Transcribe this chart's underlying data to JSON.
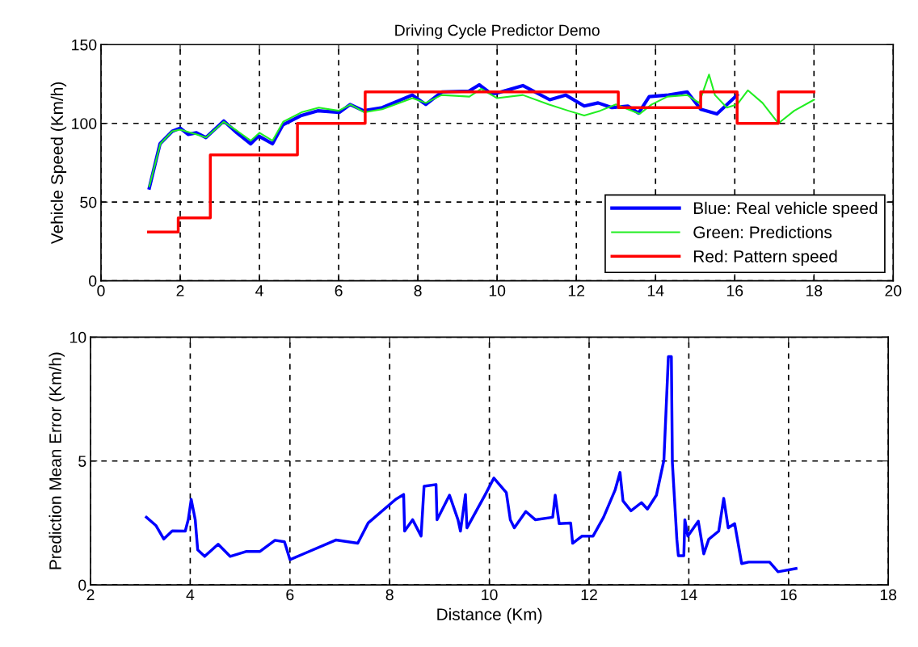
{
  "chart_data": [
    {
      "type": "line",
      "title": "Driving Cycle Predictor Demo",
      "ylabel": "Vehicle Speed (Km/h)",
      "xlim": [
        0,
        20
      ],
      "xticks": [
        0,
        2,
        4,
        6,
        8,
        10,
        12,
        14,
        16,
        18,
        20
      ],
      "ylim": [
        0,
        150
      ],
      "yticks": [
        0,
        50,
        100,
        150
      ],
      "grid": true,
      "legend": "bottom right",
      "marker": "none",
      "line_style": "solid",
      "series": [
        {
          "name": "Blue: Real vehicle speed",
          "color": "#0000ff",
          "x": [
            1.22,
            1.49,
            1.8,
            2.0,
            2.2,
            2.41,
            2.65,
            3.1,
            3.43,
            3.78,
            3.98,
            4.33,
            4.59,
            5.06,
            5.47,
            6.02,
            6.29,
            6.63,
            7.1,
            7.86,
            8.2,
            8.61,
            9.29,
            9.55,
            9.84,
            9.96,
            10.65,
            11.33,
            11.73,
            12.2,
            12.55,
            12.9,
            13.3,
            13.57,
            13.84,
            14.33,
            14.8,
            15.14,
            15.55,
            16.06
          ],
          "values": [
            59,
            87,
            95,
            97,
            93,
            94,
            91,
            101.5,
            94,
            87,
            92,
            87,
            99,
            105,
            108,
            107,
            112,
            108,
            110,
            118,
            112,
            120,
            120.5,
            124.5,
            119,
            119,
            124,
            115,
            118,
            111,
            113,
            110,
            111,
            106.5,
            117,
            118,
            120,
            109,
            106,
            118
          ]
        },
        {
          "name": "Green: Predictions",
          "color": "#22ee22",
          "x": [
            1.22,
            1.5,
            1.8,
            2.0,
            2.4,
            2.65,
            3.1,
            3.45,
            3.78,
            4.0,
            4.33,
            4.6,
            5.06,
            5.5,
            6.0,
            6.3,
            6.65,
            7.1,
            7.86,
            8.2,
            8.6,
            9.3,
            9.6,
            10.0,
            10.65,
            11.3,
            11.8,
            12.2,
            12.6,
            13.0,
            13.6,
            13.9,
            14.3,
            14.8,
            15.1,
            15.35,
            15.5,
            15.8,
            16.06,
            16.33,
            16.7,
            17.1,
            17.5,
            18.0
          ],
          "values": [
            60,
            87,
            95,
            96,
            93,
            91,
            101,
            95,
            89,
            94,
            89,
            101,
            107,
            110,
            108,
            112,
            107,
            109,
            116,
            113,
            118,
            117,
            122,
            116,
            118,
            112,
            108,
            105,
            108,
            112,
            106,
            112,
            117,
            118,
            113,
            131,
            118,
            110,
            112,
            121,
            113,
            100,
            108,
            115
          ]
        },
        {
          "name": "Red: Pattern speed",
          "type": "step",
          "color": "#ff0000",
          "x": [
            1.2,
            1.95,
            2.76,
            4.96,
            6.67,
            13.06,
            15.14,
            16.06,
            17.1,
            18.0
          ],
          "values": [
            31,
            40,
            80,
            100,
            120,
            110,
            120,
            100,
            120,
            120
          ]
        }
      ]
    },
    {
      "type": "line",
      "xlabel": "Distance (Km)",
      "ylabel": "Prediction Mean Error (Km/h)",
      "xlim": [
        2,
        18
      ],
      "xticks": [
        2,
        4,
        6,
        8,
        10,
        12,
        14,
        16,
        18
      ],
      "ylim": [
        0,
        10
      ],
      "yticks": [
        0,
        5,
        10
      ],
      "grid": true,
      "marker": "none",
      "line_style": "solid",
      "series": [
        {
          "color": "#0000ff",
          "x": [
            3.12,
            3.31,
            3.47,
            3.64,
            3.9,
            3.96,
            4.02,
            4.1,
            4.15,
            4.29,
            4.56,
            4.8,
            5.13,
            5.4,
            5.7,
            5.89,
            6.0,
            6.27,
            6.92,
            7.36,
            7.57,
            8.12,
            8.28,
            8.3,
            8.46,
            8.63,
            8.69,
            8.93,
            8.95,
            9.2,
            9.37,
            9.42,
            9.52,
            9.55,
            9.91,
            10.09,
            10.34,
            10.42,
            10.5,
            10.73,
            10.92,
            11.27,
            11.32,
            11.4,
            11.63,
            11.67,
            11.86,
            12.08,
            12.29,
            12.52,
            12.62,
            12.68,
            12.84,
            13.05,
            13.17,
            13.35,
            13.5,
            13.59,
            13.65,
            13.67,
            13.76,
            13.79,
            13.9,
            13.92,
            13.98,
            14.19,
            14.3,
            14.4,
            14.6,
            14.7,
            14.79,
            14.92,
            15.06,
            15.2,
            15.62,
            15.79,
            16.15
          ],
          "values": [
            2.73,
            2.4,
            1.85,
            2.18,
            2.17,
            2.63,
            3.45,
            2.63,
            1.41,
            1.15,
            1.64,
            1.15,
            1.35,
            1.35,
            1.8,
            1.74,
            1.02,
            1.25,
            1.81,
            1.68,
            2.5,
            3.45,
            3.65,
            2.17,
            2.63,
            1.97,
            3.98,
            4.05,
            2.63,
            3.62,
            2.63,
            2.17,
            3.65,
            2.3,
            3.62,
            4.31,
            3.72,
            2.63,
            2.3,
            2.96,
            2.63,
            2.73,
            3.62,
            2.47,
            2.5,
            1.68,
            1.97,
            1.97,
            2.73,
            3.82,
            4.54,
            3.39,
            2.99,
            3.32,
            3.06,
            3.62,
            5.03,
            9.21,
            9.21,
            4.93,
            1.84,
            1.18,
            1.18,
            2.63,
            1.97,
            2.57,
            1.25,
            1.84,
            2.17,
            3.49,
            2.3,
            2.47,
            0.86,
            0.92,
            0.92,
            0.53,
            0.66
          ]
        }
      ]
    }
  ]
}
